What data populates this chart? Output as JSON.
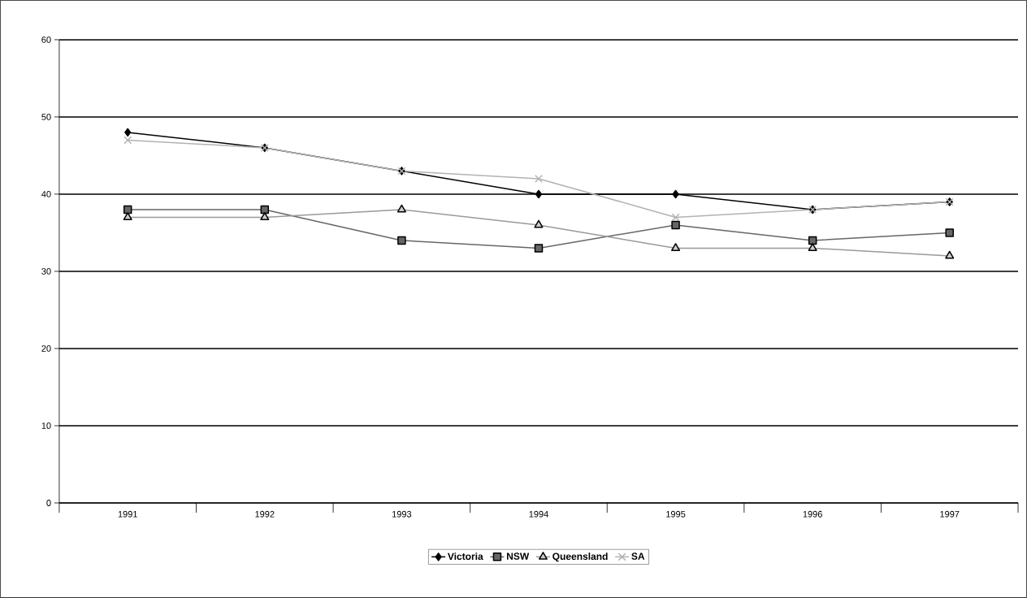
{
  "chart_data": {
    "type": "line",
    "categories": [
      "1991",
      "1992",
      "1993",
      "1994",
      "1995",
      "1996",
      "1997"
    ],
    "series": [
      {
        "name": "Victoria",
        "color": "#000000",
        "marker": "diamond",
        "values": [
          48,
          46,
          43,
          40,
          40,
          38,
          39
        ]
      },
      {
        "name": "NSW",
        "color": "#666666",
        "marker": "square",
        "values": [
          38,
          38,
          34,
          33,
          36,
          34,
          35
        ]
      },
      {
        "name": "Queensland",
        "color": "#999999",
        "marker": "triangle",
        "values": [
          37,
          37,
          38,
          36,
          33,
          33,
          32
        ]
      },
      {
        "name": "SA",
        "color": "#b2b2b2",
        "marker": "cross",
        "values": [
          47,
          46,
          43,
          42,
          37,
          38,
          39
        ]
      }
    ],
    "ylim": [
      0,
      60
    ],
    "yticks": [
      0,
      10,
      20,
      30,
      40,
      50,
      60
    ],
    "grid": "y",
    "legend": "bottom"
  }
}
